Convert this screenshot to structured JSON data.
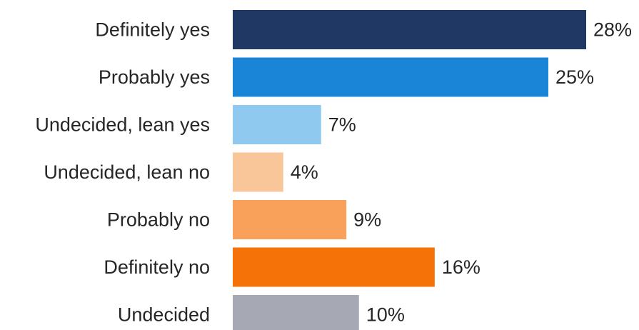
{
  "chart_data": {
    "type": "bar",
    "orientation": "horizontal",
    "categories": [
      "Definitely yes",
      "Probably yes",
      "Undecided, lean yes",
      "Undecided, lean no",
      "Probably no",
      "Definitely no",
      "Undecided"
    ],
    "values": [
      28,
      25,
      7,
      4,
      9,
      16,
      10
    ],
    "value_labels": [
      "28%",
      "25%",
      "7%",
      "4%",
      "9%",
      "16%",
      "10%"
    ],
    "colors": [
      "#1f3864",
      "#1a85d6",
      "#8fc9f0",
      "#f9c69a",
      "#f9a15a",
      "#f57208",
      "#a6a8b4"
    ],
    "unit": "%",
    "grid": false,
    "legend": "none",
    "xlim": [
      0,
      28
    ]
  }
}
